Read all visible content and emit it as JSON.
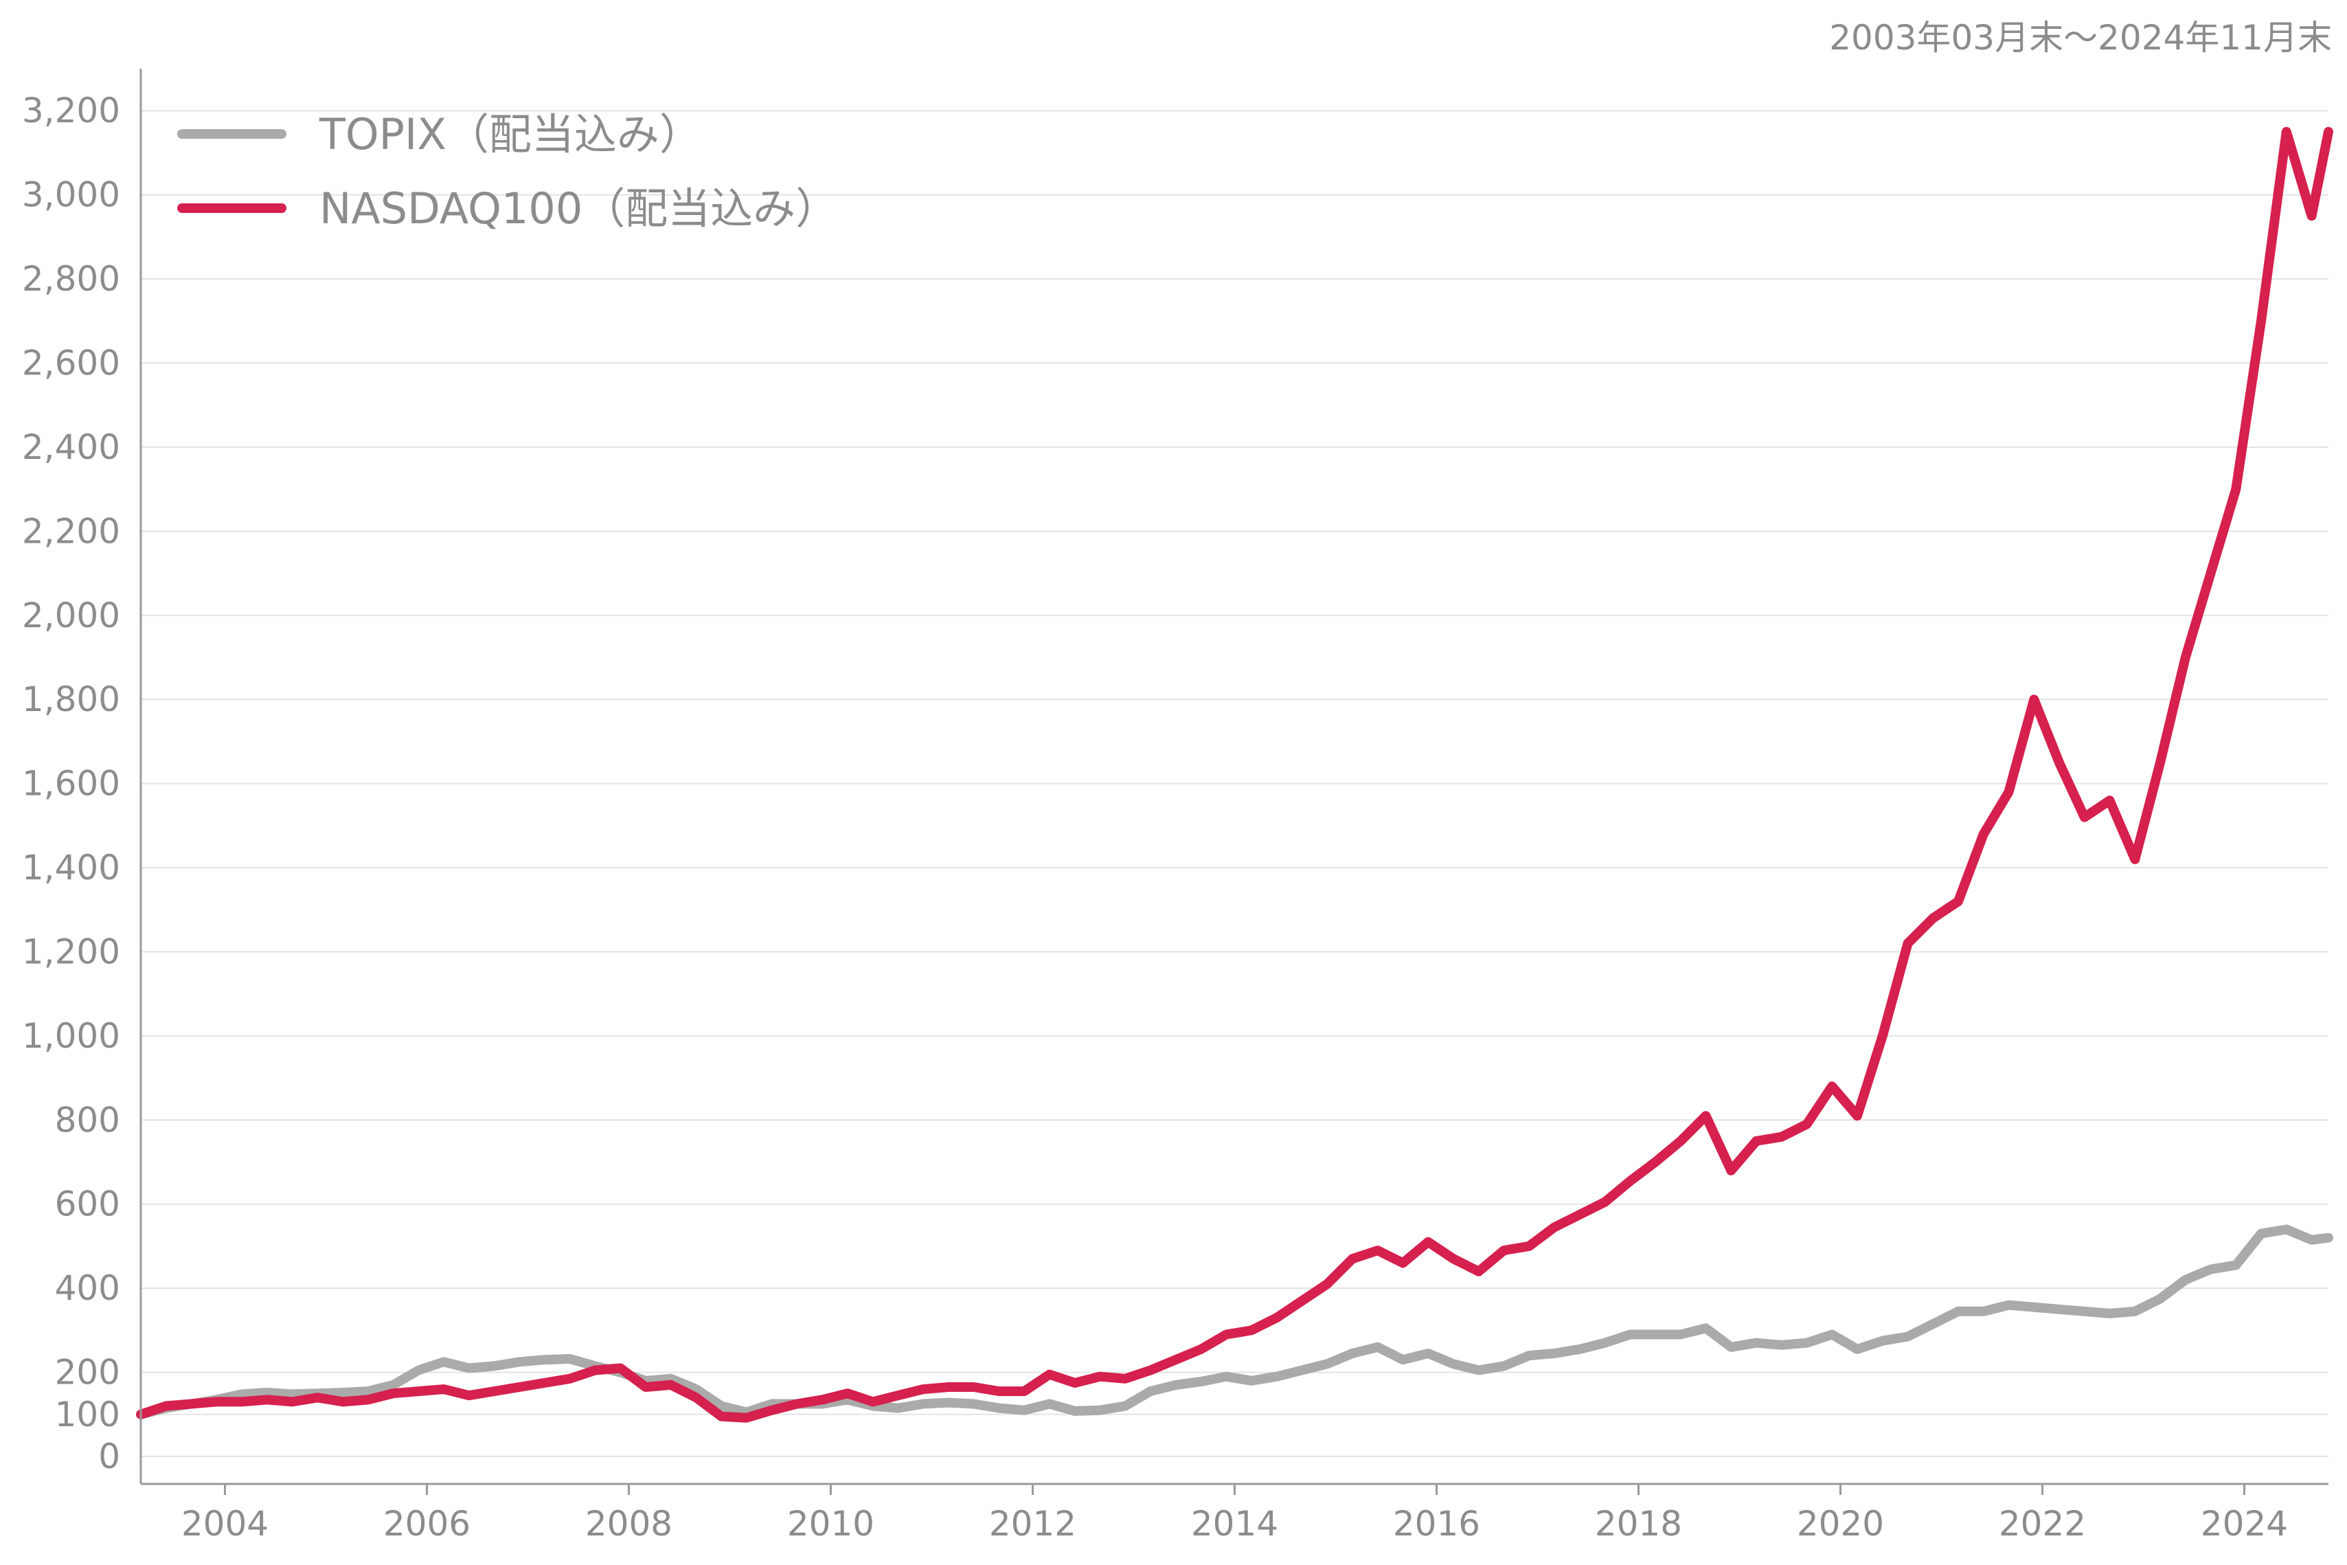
{
  "chart_data": {
    "type": "line",
    "period_label": "2003年03月末～2024年11月末",
    "x_range": [
      "2003-03",
      "2024-11"
    ],
    "ylim": [
      0,
      3300
    ],
    "y_ticks": [
      0,
      100,
      200,
      400,
      600,
      800,
      1000,
      1200,
      1400,
      1600,
      1800,
      2000,
      2200,
      2400,
      2600,
      2800,
      3000,
      3200
    ],
    "y_tick_labels": [
      "0",
      "100",
      "200",
      "400",
      "600",
      "800",
      "1,000",
      "1,200",
      "1,400",
      "1,600",
      "1,800",
      "2,000",
      "2,200",
      "2,400",
      "2,600",
      "2,800",
      "3,000",
      "3,200"
    ],
    "x_ticks": [
      2004,
      2006,
      2008,
      2010,
      2012,
      2014,
      2016,
      2018,
      2020,
      2022,
      2024
    ],
    "x_tick_labels": [
      "2004",
      "2006",
      "2008",
      "2010",
      "2012",
      "2014",
      "2016",
      "2018",
      "2020",
      "2022",
      "2024"
    ],
    "grid": "horizontal",
    "legend_position": "top-left",
    "series": [
      {
        "name": "TOPIX（配当込み）",
        "color": "#aaaaaa",
        "points": [
          [
            "2003-03",
            100
          ],
          [
            "2003-06",
            115
          ],
          [
            "2003-09",
            125
          ],
          [
            "2003-12",
            135
          ],
          [
            "2004-03",
            148
          ],
          [
            "2004-06",
            152
          ],
          [
            "2004-09",
            148
          ],
          [
            "2004-12",
            150
          ],
          [
            "2005-03",
            152
          ],
          [
            "2005-06",
            155
          ],
          [
            "2005-09",
            170
          ],
          [
            "2005-12",
            205
          ],
          [
            "2006-03",
            225
          ],
          [
            "2006-06",
            210
          ],
          [
            "2006-09",
            215
          ],
          [
            "2006-12",
            225
          ],
          [
            "2007-03",
            230
          ],
          [
            "2007-06",
            232
          ],
          [
            "2007-09",
            215
          ],
          [
            "2007-12",
            200
          ],
          [
            "2008-03",
            180
          ],
          [
            "2008-06",
            185
          ],
          [
            "2008-09",
            160
          ],
          [
            "2008-12",
            120
          ],
          [
            "2009-03",
            105
          ],
          [
            "2009-06",
            125
          ],
          [
            "2009-09",
            125
          ],
          [
            "2009-12",
            125
          ],
          [
            "2010-03",
            135
          ],
          [
            "2010-06",
            120
          ],
          [
            "2010-09",
            115
          ],
          [
            "2010-12",
            125
          ],
          [
            "2011-03",
            128
          ],
          [
            "2011-06",
            125
          ],
          [
            "2011-09",
            115
          ],
          [
            "2011-12",
            110
          ],
          [
            "2012-03",
            125
          ],
          [
            "2012-06",
            108
          ],
          [
            "2012-09",
            110
          ],
          [
            "2012-12",
            120
          ],
          [
            "2013-03",
            155
          ],
          [
            "2013-06",
            170
          ],
          [
            "2013-09",
            178
          ],
          [
            "2013-12",
            190
          ],
          [
            "2014-03",
            180
          ],
          [
            "2014-06",
            190
          ],
          [
            "2014-09",
            205
          ],
          [
            "2014-12",
            220
          ],
          [
            "2015-03",
            245
          ],
          [
            "2015-06",
            260
          ],
          [
            "2015-09",
            230
          ],
          [
            "2015-12",
            245
          ],
          [
            "2016-03",
            220
          ],
          [
            "2016-06",
            205
          ],
          [
            "2016-09",
            215
          ],
          [
            "2016-12",
            240
          ],
          [
            "2017-03",
            245
          ],
          [
            "2017-06",
            255
          ],
          [
            "2017-09",
            270
          ],
          [
            "2017-12",
            290
          ],
          [
            "2018-03",
            290
          ],
          [
            "2018-06",
            290
          ],
          [
            "2018-09",
            305
          ],
          [
            "2018-12",
            260
          ],
          [
            "2019-03",
            270
          ],
          [
            "2019-06",
            265
          ],
          [
            "2019-09",
            270
          ],
          [
            "2019-12",
            290
          ],
          [
            "2020-03",
            255
          ],
          [
            "2020-06",
            275
          ],
          [
            "2020-09",
            285
          ],
          [
            "2020-12",
            315
          ],
          [
            "2021-03",
            345
          ],
          [
            "2021-06",
            345
          ],
          [
            "2021-09",
            360
          ],
          [
            "2021-12",
            355
          ],
          [
            "2022-03",
            350
          ],
          [
            "2022-06",
            345
          ],
          [
            "2022-09",
            340
          ],
          [
            "2022-12",
            345
          ],
          [
            "2023-03",
            375
          ],
          [
            "2023-06",
            420
          ],
          [
            "2023-09",
            445
          ],
          [
            "2023-12",
            455
          ],
          [
            "2024-03",
            530
          ],
          [
            "2024-06",
            540
          ],
          [
            "2024-09",
            515
          ],
          [
            "2024-11",
            520
          ]
        ]
      },
      {
        "name": "NASDAQ100（配当込み）",
        "color": "#d6204e",
        "points": [
          [
            "2003-03",
            100
          ],
          [
            "2003-06",
            120
          ],
          [
            "2003-09",
            125
          ],
          [
            "2003-12",
            130
          ],
          [
            "2004-03",
            130
          ],
          [
            "2004-06",
            135
          ],
          [
            "2004-09",
            130
          ],
          [
            "2004-12",
            140
          ],
          [
            "2005-03",
            130
          ],
          [
            "2005-06",
            135
          ],
          [
            "2005-09",
            150
          ],
          [
            "2005-12",
            155
          ],
          [
            "2006-03",
            160
          ],
          [
            "2006-06",
            145
          ],
          [
            "2006-09",
            155
          ],
          [
            "2006-12",
            165
          ],
          [
            "2007-03",
            175
          ],
          [
            "2007-06",
            185
          ],
          [
            "2007-09",
            205
          ],
          [
            "2007-12",
            210
          ],
          [
            "2008-03",
            165
          ],
          [
            "2008-06",
            170
          ],
          [
            "2008-09",
            140
          ],
          [
            "2008-12",
            95
          ],
          [
            "2009-03",
            92
          ],
          [
            "2009-06",
            110
          ],
          [
            "2009-09",
            125
          ],
          [
            "2009-12",
            135
          ],
          [
            "2010-03",
            150
          ],
          [
            "2010-06",
            130
          ],
          [
            "2010-09",
            145
          ],
          [
            "2010-12",
            160
          ],
          [
            "2011-03",
            165
          ],
          [
            "2011-06",
            165
          ],
          [
            "2011-09",
            155
          ],
          [
            "2011-12",
            155
          ],
          [
            "2012-03",
            195
          ],
          [
            "2012-06",
            175
          ],
          [
            "2012-09",
            190
          ],
          [
            "2012-12",
            185
          ],
          [
            "2013-03",
            205
          ],
          [
            "2013-06",
            230
          ],
          [
            "2013-09",
            255
          ],
          [
            "2013-12",
            290
          ],
          [
            "2014-03",
            300
          ],
          [
            "2014-06",
            330
          ],
          [
            "2014-09",
            370
          ],
          [
            "2014-12",
            410
          ],
          [
            "2015-03",
            470
          ],
          [
            "2015-06",
            490
          ],
          [
            "2015-09",
            460
          ],
          [
            "2015-12",
            510
          ],
          [
            "2016-03",
            470
          ],
          [
            "2016-06",
            440
          ],
          [
            "2016-09",
            490
          ],
          [
            "2016-12",
            500
          ],
          [
            "2017-03",
            545
          ],
          [
            "2017-06",
            575
          ],
          [
            "2017-09",
            605
          ],
          [
            "2017-12",
            655
          ],
          [
            "2018-03",
            700
          ],
          [
            "2018-06",
            750
          ],
          [
            "2018-09",
            810
          ],
          [
            "2018-12",
            680
          ],
          [
            "2019-03",
            750
          ],
          [
            "2019-06",
            760
          ],
          [
            "2019-09",
            790
          ],
          [
            "2019-12",
            880
          ],
          [
            "2020-03",
            810
          ],
          [
            "2020-06",
            1000
          ],
          [
            "2020-09",
            1220
          ],
          [
            "2020-12",
            1280
          ],
          [
            "2021-03",
            1320
          ],
          [
            "2021-06",
            1480
          ],
          [
            "2021-09",
            1580
          ],
          [
            "2021-12",
            1800
          ],
          [
            "2022-03",
            1650
          ],
          [
            "2022-06",
            1520
          ],
          [
            "2022-09",
            1560
          ],
          [
            "2022-12",
            1420
          ],
          [
            "2023-03",
            1650
          ],
          [
            "2023-06",
            1900
          ],
          [
            "2023-09",
            2100
          ],
          [
            "2023-12",
            2300
          ],
          [
            "2024-03",
            2700
          ],
          [
            "2024-06",
            3150
          ],
          [
            "2024-09",
            2950
          ],
          [
            "2024-11",
            3150
          ]
        ]
      }
    ]
  }
}
